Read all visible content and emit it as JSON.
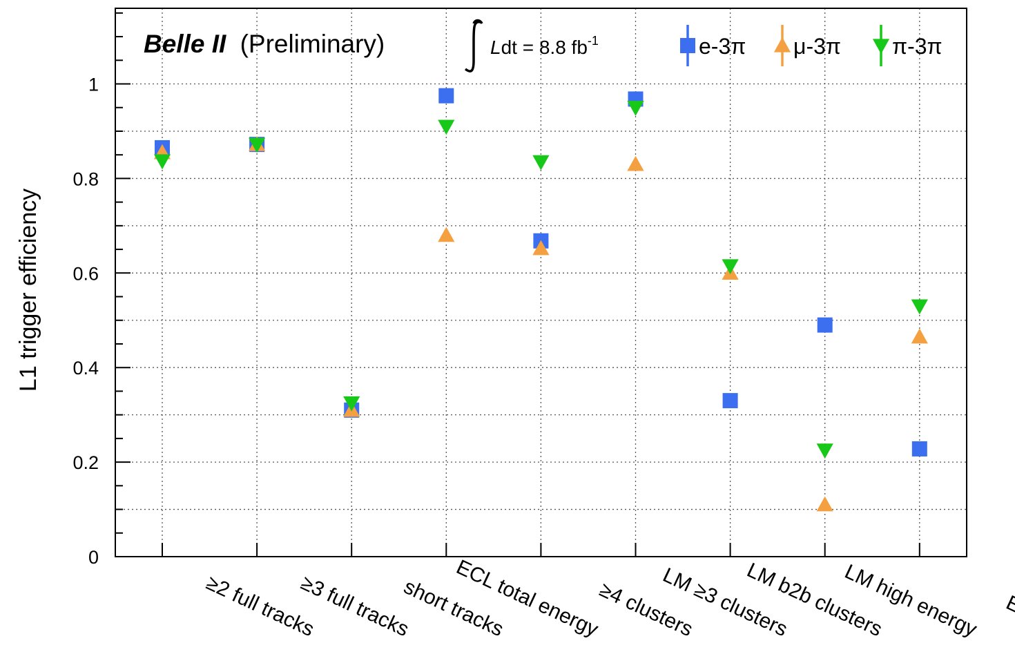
{
  "chart_data": {
    "type": "scatter",
    "title": "",
    "xlabel": "",
    "ylabel": "L1 trigger efficiency",
    "ylim": [
      0,
      1.16
    ],
    "yticks": [
      "0",
      "0.2",
      "0.4",
      "0.6",
      "0.8",
      "1"
    ],
    "grid": true,
    "legend_position": "top-right",
    "annotation_experiment": "Belle II",
    "annotation_status": "(Preliminary)",
    "annotation_lumi_prefix": "dt = 8.8 fb",
    "annotation_lumi_L": "L",
    "annotation_lumi_exp": "-1",
    "categories": [
      "≥2 full tracks",
      "≥3 full tracks",
      "short tracks",
      "ECL total energy",
      "≥4 clusters",
      "LM ≥3 clusters",
      "LM b2b clusters",
      "LM high energy",
      "ECL μμ"
    ],
    "series": [
      {
        "name": "e-3π",
        "marker": "square",
        "color": "#3b6ff0",
        "values": [
          0.865,
          0.872,
          0.31,
          0.975,
          0.668,
          0.968,
          0.33,
          0.49,
          0.228
        ]
      },
      {
        "name": "μ-3π",
        "marker": "triangle-up",
        "color": "#f5a040",
        "values": [
          0.855,
          0.872,
          0.31,
          0.68,
          0.652,
          0.83,
          0.6,
          0.11,
          0.465
        ]
      },
      {
        "name": "π-3π",
        "marker": "triangle-down",
        "color": "#18c818",
        "values": [
          0.837,
          0.872,
          0.325,
          0.91,
          0.835,
          0.95,
          0.615,
          0.225,
          0.53
        ]
      }
    ]
  }
}
